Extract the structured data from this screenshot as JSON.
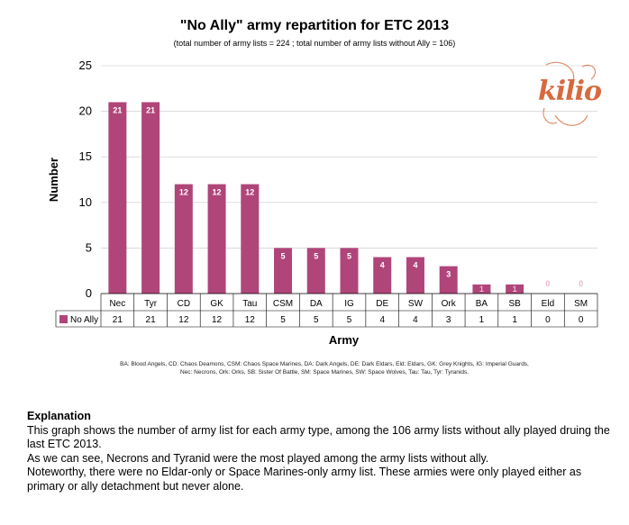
{
  "page": {
    "title": "\"No Ally\" army repartition for ETC 2013",
    "subtitle": "(total number of army lists = 224 ; total number of army lists without Ally = 106)",
    "abbreviations": [
      "BA: Blood Angels, CD: Chaos Deamons, CSM: Chaos Space Marines, DA: Dark Angels, DE: Dark Eldars, Eld: Eldars, GK: Grey Knights, IG: Imperial Guards,",
      "Nec: Necrons, Ork: Orks, SB: Sister Of Battle, SM: Space Marines, SW: Space Wolves, Tau: Tau, Tyr: Tyranids."
    ],
    "watermark_text": "kilio"
  },
  "explanation": {
    "heading": "Explanation",
    "lines": [
      "This graph shows the number of army list for each army type, among the 106 army lists without ally played druing the last ETC 2013.",
      "As we can see, Necrons and Tyranid were the most played among the army lists without ally.",
      "Noteworthy, there were no Eldar-only or Space Marines-only army list. These armies were only played either as primary or ally detachment but never alone."
    ]
  },
  "chart_data": {
    "type": "bar",
    "title": "\"No Ally\" army repartition for ETC 2013",
    "subtitle": "(total number of army lists = 224 ; total number of army lists without Ally = 106)",
    "xlabel": "Army",
    "ylabel": "Number",
    "ylim": [
      0,
      25
    ],
    "yticks": [
      0,
      5,
      10,
      15,
      20,
      25
    ],
    "grid": true,
    "legend_placement": "data-table-left",
    "categories": [
      "Nec",
      "Tyr",
      "CD",
      "GK",
      "Tau",
      "CSM",
      "DA",
      "IG",
      "DE",
      "SW",
      "Ork",
      "BA",
      "SB",
      "Eld",
      "SM"
    ],
    "series": [
      {
        "name": "No Ally",
        "color": "#b0457a",
        "values": [
          21,
          21,
          12,
          12,
          12,
          5,
          5,
          5,
          4,
          4,
          3,
          1,
          1,
          0,
          0
        ]
      }
    ]
  }
}
